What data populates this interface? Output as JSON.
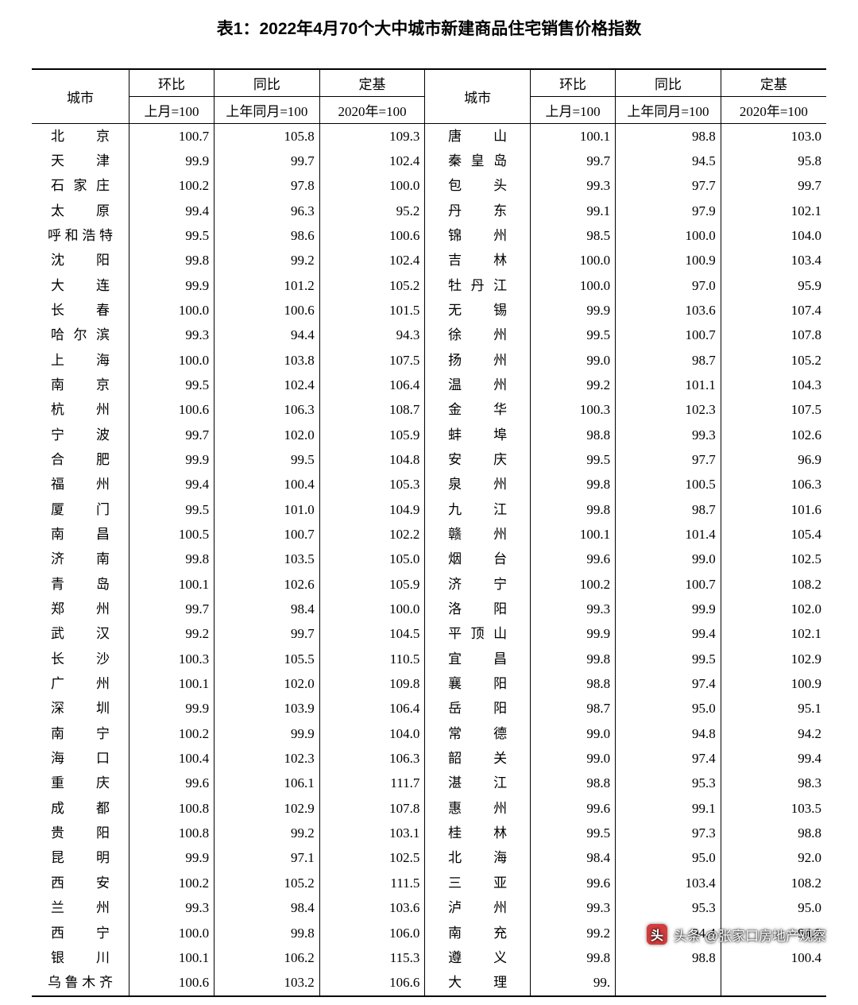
{
  "title": "表1：2022年4月70个大中城市新建商品住宅销售价格指数",
  "headers": {
    "city": "城市",
    "mom": "环比",
    "yoy": "同比",
    "base": "定基",
    "mom_sub": "上月=100",
    "yoy_sub": "上年同月=100",
    "base_sub": "2020年=100"
  },
  "table": {
    "type": "table",
    "title_fontsize": 21,
    "body_fontsize": 17,
    "border_color": "#000000",
    "background_color": "#ffffff",
    "text_color": "#000000",
    "columns_left": [
      "城市",
      "环比",
      "同比",
      "定基"
    ],
    "columns_right": [
      "城市",
      "环比",
      "同比",
      "定基"
    ],
    "col_widths_pct": [
      12,
      10.5,
      13,
      13,
      13,
      10.5,
      13,
      13
    ],
    "num_align": "right",
    "city_align": "justify-center"
  },
  "left": [
    {
      "city": "北京",
      "mom": "100.7",
      "yoy": "105.8",
      "base": "109.3"
    },
    {
      "city": "天津",
      "mom": "99.9",
      "yoy": "99.7",
      "base": "102.4"
    },
    {
      "city": "石家庄",
      "mom": "100.2",
      "yoy": "97.8",
      "base": "100.0"
    },
    {
      "city": "太原",
      "mom": "99.4",
      "yoy": "96.3",
      "base": "95.2"
    },
    {
      "city": "呼和浩特",
      "mom": "99.5",
      "yoy": "98.6",
      "base": "100.6"
    },
    {
      "city": "沈阳",
      "mom": "99.8",
      "yoy": "99.2",
      "base": "102.4"
    },
    {
      "city": "大连",
      "mom": "99.9",
      "yoy": "101.2",
      "base": "105.2"
    },
    {
      "city": "长春",
      "mom": "100.0",
      "yoy": "100.6",
      "base": "101.5"
    },
    {
      "city": "哈尔滨",
      "mom": "99.3",
      "yoy": "94.4",
      "base": "94.3"
    },
    {
      "city": "上海",
      "mom": "100.0",
      "yoy": "103.8",
      "base": "107.5"
    },
    {
      "city": "南京",
      "mom": "99.5",
      "yoy": "102.4",
      "base": "106.4"
    },
    {
      "city": "杭州",
      "mom": "100.6",
      "yoy": "106.3",
      "base": "108.7"
    },
    {
      "city": "宁波",
      "mom": "99.7",
      "yoy": "102.0",
      "base": "105.9"
    },
    {
      "city": "合肥",
      "mom": "99.9",
      "yoy": "99.5",
      "base": "104.8"
    },
    {
      "city": "福州",
      "mom": "99.4",
      "yoy": "100.4",
      "base": "105.3"
    },
    {
      "city": "厦门",
      "mom": "99.5",
      "yoy": "101.0",
      "base": "104.9"
    },
    {
      "city": "南昌",
      "mom": "100.5",
      "yoy": "100.7",
      "base": "102.2"
    },
    {
      "city": "济南",
      "mom": "99.8",
      "yoy": "103.5",
      "base": "105.0"
    },
    {
      "city": "青岛",
      "mom": "100.1",
      "yoy": "102.6",
      "base": "105.9"
    },
    {
      "city": "郑州",
      "mom": "99.7",
      "yoy": "98.4",
      "base": "100.0"
    },
    {
      "city": "武汉",
      "mom": "99.2",
      "yoy": "99.7",
      "base": "104.5"
    },
    {
      "city": "长沙",
      "mom": "100.3",
      "yoy": "105.5",
      "base": "110.5"
    },
    {
      "city": "广州",
      "mom": "100.1",
      "yoy": "102.0",
      "base": "109.8"
    },
    {
      "city": "深圳",
      "mom": "99.9",
      "yoy": "103.9",
      "base": "106.4"
    },
    {
      "city": "南宁",
      "mom": "100.2",
      "yoy": "99.9",
      "base": "104.0"
    },
    {
      "city": "海口",
      "mom": "100.4",
      "yoy": "102.3",
      "base": "106.3"
    },
    {
      "city": "重庆",
      "mom": "99.6",
      "yoy": "106.1",
      "base": "111.7"
    },
    {
      "city": "成都",
      "mom": "100.8",
      "yoy": "102.9",
      "base": "107.8"
    },
    {
      "city": "贵阳",
      "mom": "100.8",
      "yoy": "99.2",
      "base": "103.1"
    },
    {
      "city": "昆明",
      "mom": "99.9",
      "yoy": "97.1",
      "base": "102.5"
    },
    {
      "city": "西安",
      "mom": "100.2",
      "yoy": "105.2",
      "base": "111.5"
    },
    {
      "city": "兰州",
      "mom": "99.3",
      "yoy": "98.4",
      "base": "103.6"
    },
    {
      "city": "西宁",
      "mom": "100.0",
      "yoy": "99.8",
      "base": "106.0"
    },
    {
      "city": "银川",
      "mom": "100.1",
      "yoy": "106.2",
      "base": "115.3"
    },
    {
      "city": "乌鲁木齐",
      "mom": "100.6",
      "yoy": "103.2",
      "base": "106.6"
    }
  ],
  "right": [
    {
      "city": "唐山",
      "mom": "100.1",
      "yoy": "98.8",
      "base": "103.0"
    },
    {
      "city": "秦皇岛",
      "mom": "99.7",
      "yoy": "94.5",
      "base": "95.8"
    },
    {
      "city": "包头",
      "mom": "99.3",
      "yoy": "97.7",
      "base": "99.7"
    },
    {
      "city": "丹东",
      "mom": "99.1",
      "yoy": "97.9",
      "base": "102.1"
    },
    {
      "city": "锦州",
      "mom": "98.5",
      "yoy": "100.0",
      "base": "104.0"
    },
    {
      "city": "吉林",
      "mom": "100.0",
      "yoy": "100.9",
      "base": "103.4"
    },
    {
      "city": "牡丹江",
      "mom": "100.0",
      "yoy": "97.0",
      "base": "95.9"
    },
    {
      "city": "无锡",
      "mom": "99.9",
      "yoy": "103.6",
      "base": "107.4"
    },
    {
      "city": "徐州",
      "mom": "99.5",
      "yoy": "100.7",
      "base": "107.8"
    },
    {
      "city": "扬州",
      "mom": "99.0",
      "yoy": "98.7",
      "base": "105.2"
    },
    {
      "city": "温州",
      "mom": "99.2",
      "yoy": "101.1",
      "base": "104.3"
    },
    {
      "city": "金华",
      "mom": "100.3",
      "yoy": "102.3",
      "base": "107.5"
    },
    {
      "city": "蚌埠",
      "mom": "98.8",
      "yoy": "99.3",
      "base": "102.6"
    },
    {
      "city": "安庆",
      "mom": "99.5",
      "yoy": "97.7",
      "base": "96.9"
    },
    {
      "city": "泉州",
      "mom": "99.8",
      "yoy": "100.5",
      "base": "106.3"
    },
    {
      "city": "九江",
      "mom": "99.8",
      "yoy": "98.7",
      "base": "101.6"
    },
    {
      "city": "赣州",
      "mom": "100.1",
      "yoy": "101.4",
      "base": "105.4"
    },
    {
      "city": "烟台",
      "mom": "99.6",
      "yoy": "99.0",
      "base": "102.5"
    },
    {
      "city": "济宁",
      "mom": "100.2",
      "yoy": "100.7",
      "base": "108.2"
    },
    {
      "city": "洛阳",
      "mom": "99.3",
      "yoy": "99.9",
      "base": "102.0"
    },
    {
      "city": "平顶山",
      "mom": "99.9",
      "yoy": "99.4",
      "base": "102.1"
    },
    {
      "city": "宜昌",
      "mom": "99.8",
      "yoy": "99.5",
      "base": "102.9"
    },
    {
      "city": "襄阳",
      "mom": "98.8",
      "yoy": "97.4",
      "base": "100.9"
    },
    {
      "city": "岳阳",
      "mom": "98.7",
      "yoy": "95.0",
      "base": "95.1"
    },
    {
      "city": "常德",
      "mom": "99.0",
      "yoy": "94.8",
      "base": "94.2"
    },
    {
      "city": "韶关",
      "mom": "99.0",
      "yoy": "97.4",
      "base": "99.4"
    },
    {
      "city": "湛江",
      "mom": "98.8",
      "yoy": "95.3",
      "base": "98.3"
    },
    {
      "city": "惠州",
      "mom": "99.6",
      "yoy": "99.1",
      "base": "103.5"
    },
    {
      "city": "桂林",
      "mom": "99.5",
      "yoy": "97.3",
      "base": "98.8"
    },
    {
      "city": "北海",
      "mom": "98.4",
      "yoy": "95.0",
      "base": "92.0"
    },
    {
      "city": "三亚",
      "mom": "99.6",
      "yoy": "103.4",
      "base": "108.2"
    },
    {
      "city": "泸州",
      "mom": "99.3",
      "yoy": "95.3",
      "base": "95.0"
    },
    {
      "city": "南充",
      "mom": "99.2",
      "yoy": "94.4",
      "base": "94.9"
    },
    {
      "city": "遵义",
      "mom": "99.8",
      "yoy": "98.8",
      "base": "100.4"
    },
    {
      "city": "大理",
      "mom": "99.",
      "yoy": "",
      "base": ""
    }
  ],
  "watermark": {
    "icon_text": "头",
    "icon_bg": "#d43d3d",
    "text": "头条 @张家口房地产观察"
  }
}
